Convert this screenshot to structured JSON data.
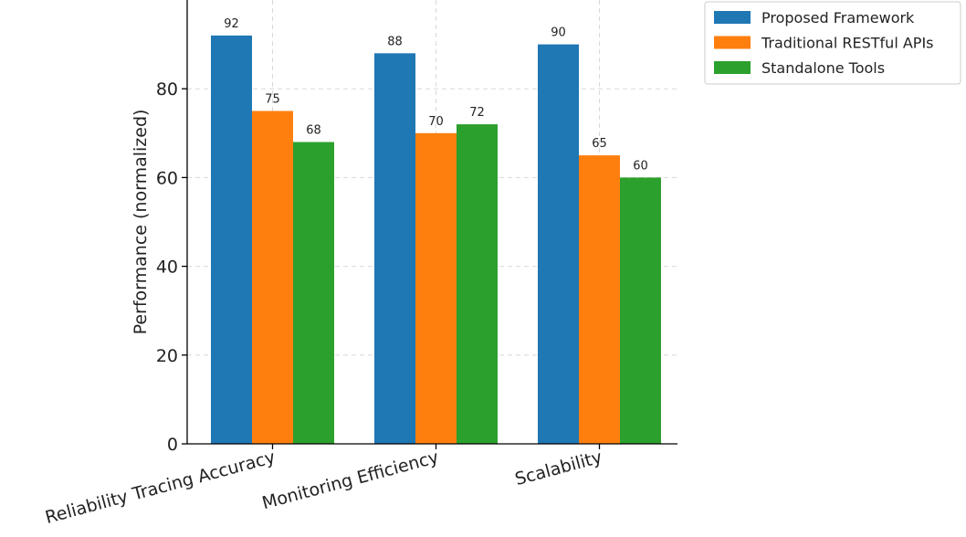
{
  "chart_data": {
    "type": "bar",
    "title": "",
    "xlabel": "",
    "ylabel": "Performance (normalized)",
    "categories": [
      "Reliability Tracing Accuracy",
      "Monitoring Efficiency",
      "Scalability"
    ],
    "series": [
      {
        "name": "Proposed Framework",
        "values": [
          92,
          88,
          90
        ],
        "color": "#1f77b4"
      },
      {
        "name": "Traditional RESTful APIs",
        "values": [
          75,
          70,
          65
        ],
        "color": "#ff7f0e"
      },
      {
        "name": "Standalone Tools",
        "values": [
          68,
          72,
          60
        ],
        "color": "#2ca02c"
      }
    ],
    "ylim": [
      0,
      100
    ],
    "yticks": [
      0,
      20,
      40,
      60,
      80
    ],
    "grid": true,
    "legend_position": "top-right",
    "show_data_labels": true
  }
}
